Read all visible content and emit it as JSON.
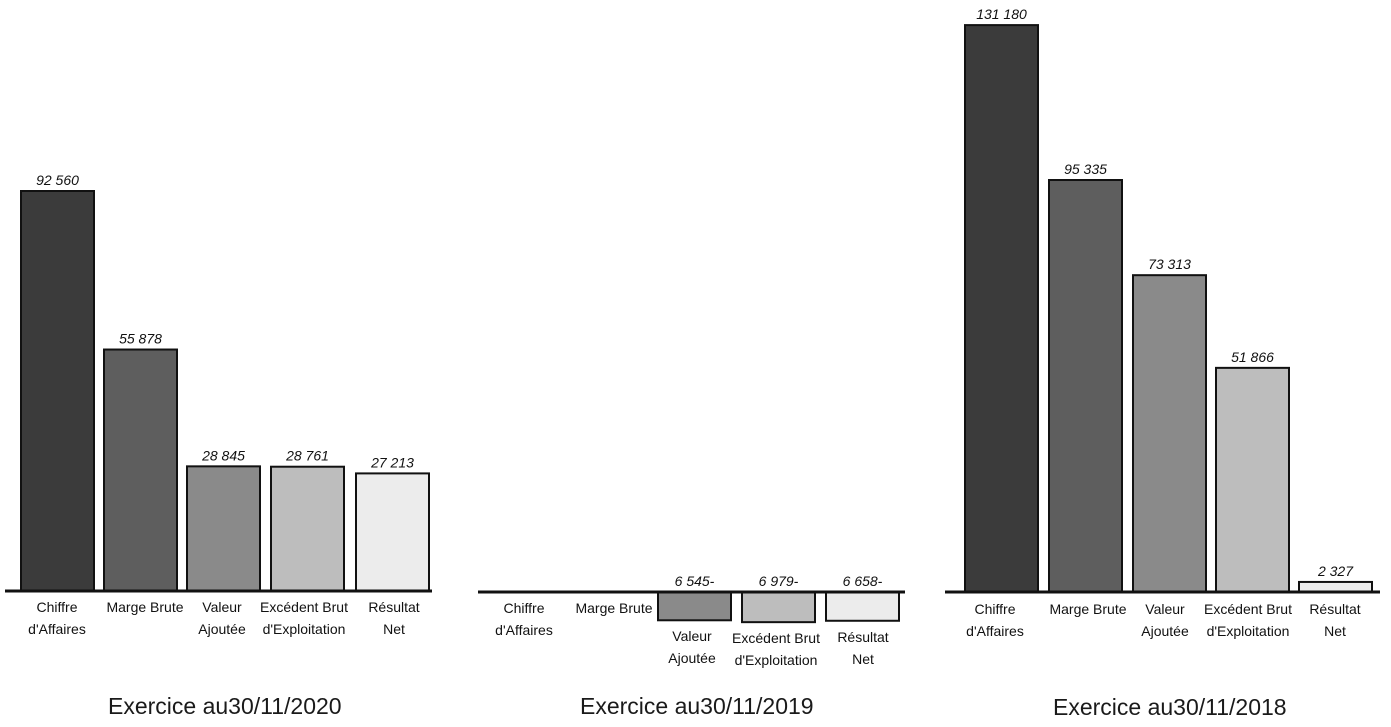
{
  "charts": [
    {
      "title": "Exercice au30/11/2020",
      "chart_data": {
        "type": "bar",
        "title": "Exercice au30/11/2020",
        "categories": [
          "Chiffre d'Affaires",
          "Marge Brute",
          "Valeur Ajoutée",
          "Excédent Brut d'Exploitation",
          "Résultat Net"
        ],
        "values": [
          92560,
          55878,
          28845,
          28761,
          27213
        ],
        "labels": [
          "92 560",
          "55 878",
          "28 845",
          "28 761",
          "27 213"
        ],
        "colors": [
          "#3b3b3b",
          "#5e5e5e",
          "#8a8a8a",
          "#bdbdbd",
          "#ececec"
        ],
        "xlabel": "",
        "ylabel": ""
      }
    },
    {
      "title": "Exercice au30/11/2019",
      "chart_data": {
        "type": "bar",
        "title": "Exercice au30/11/2019",
        "categories": [
          "Chiffre d'Affaires",
          "Marge Brute",
          "Valeur Ajoutée",
          "Excédent Brut d'Exploitation",
          "Résultat Net"
        ],
        "values": [
          0,
          0,
          -6545,
          -6979,
          -6658
        ],
        "labels": [
          "",
          "",
          "6 545-",
          "6 979-",
          "6 658-"
        ],
        "colors": [
          "#3b3b3b",
          "#5e5e5e",
          "#8a8a8a",
          "#bdbdbd",
          "#ececec"
        ],
        "xlabel": "",
        "ylabel": ""
      }
    },
    {
      "title": "Exercice au30/11/2018",
      "chart_data": {
        "type": "bar",
        "title": "Exercice au30/11/2018",
        "categories": [
          "Chiffre d'Affaires",
          "Marge Brute",
          "Valeur Ajoutée",
          "Excédent Brut d'Exploitation",
          "Résultat Net"
        ],
        "values": [
          131180,
          95335,
          73313,
          51866,
          2327
        ],
        "labels": [
          "131 180",
          "95 335",
          "73 313",
          "51 866",
          "2 327"
        ],
        "colors": [
          "#3b3b3b",
          "#5e5e5e",
          "#8a8a8a",
          "#bdbdbd",
          "#ececec"
        ],
        "xlabel": "",
        "ylabel": ""
      }
    }
  ]
}
